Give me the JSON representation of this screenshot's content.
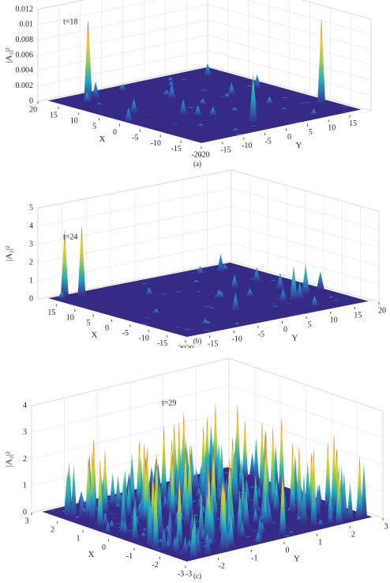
{
  "chart_data": [
    {
      "type": "surface",
      "annotation": "t=18",
      "caption": "(a)",
      "xlabel": "X",
      "ylabel": "Y",
      "zlabel": "|A₂|²",
      "xlim": [
        -20,
        20
      ],
      "xticks": [
        -20,
        -15,
        -10,
        -5,
        0,
        5,
        10,
        15,
        20
      ],
      "ylim": [
        -20,
        20
      ],
      "yticks": [
        -20,
        -15,
        -10,
        -5,
        0,
        5,
        10,
        15
      ],
      "zlim": [
        0,
        0.012
      ],
      "zticks": [
        0,
        0.002,
        0.004,
        0.006,
        0.008,
        0.01,
        0.012
      ]
    },
    {
      "type": "surface",
      "annotation": "t=24",
      "caption": "(b)",
      "xlabel": "X",
      "ylabel": "Y",
      "zlabel": "|A₂|²",
      "xlim": [
        -20,
        20
      ],
      "xticks": [
        -20,
        -15,
        -10,
        -5,
        0,
        5,
        10,
        15
      ],
      "ylim": [
        -20,
        20
      ],
      "yticks": [
        -20,
        -15,
        -10,
        -5,
        0,
        5,
        10,
        15,
        20
      ],
      "zlim": [
        0,
        5
      ],
      "zticks": [
        0,
        1,
        2,
        3,
        4,
        5
      ]
    },
    {
      "type": "surface",
      "annotation": "t=29",
      "caption": "(c)",
      "xlabel": "X",
      "ylabel": "Y",
      "zlabel": "|A₂|²",
      "xlim": [
        -3,
        3
      ],
      "xticks": [
        -3,
        -2,
        -1,
        0,
        1,
        2,
        3
      ],
      "ylim": [
        -3,
        3
      ],
      "yticks": [
        -3,
        -2,
        -1,
        0,
        1,
        2,
        3
      ],
      "zlim": [
        0,
        4
      ],
      "zticks": [
        0,
        1,
        2,
        3,
        4
      ]
    }
  ]
}
